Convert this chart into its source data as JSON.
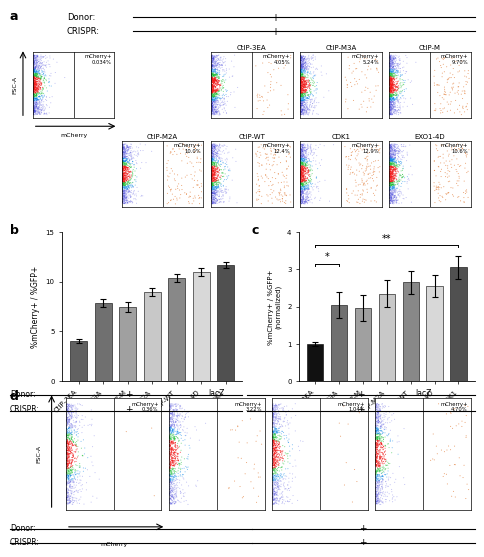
{
  "panel_a_label": "a",
  "panel_b_label": "b",
  "panel_c_label": "c",
  "panel_d_label": "d",
  "donor_label": "Donor:",
  "crispr_label": "CRISPR:",
  "plus": "+",
  "fsc_label": "FSC-A",
  "mcherry_label": "mCherry",
  "panel_b_categories": [
    "CtIP-3EA",
    "CtIP-M3A",
    "CtIP-M",
    "CtIP-M2A",
    "CtIP-WT",
    "EXO1-4D",
    "CDK1"
  ],
  "panel_b_values": [
    4.0,
    7.9,
    7.5,
    9.0,
    10.4,
    11.0,
    11.7
  ],
  "panel_b_errors": [
    0.2,
    0.4,
    0.5,
    0.4,
    0.4,
    0.4,
    0.3
  ],
  "panel_b_colors": [
    "#606060",
    "#707070",
    "#a0a0a0",
    "#c8c8c8",
    "#888888",
    "#d8d8d8",
    "#505050"
  ],
  "panel_b_ylabel": "%mCherry+ / %GFP+",
  "panel_b_ylim": [
    0,
    15
  ],
  "panel_b_yticks": [
    0,
    5,
    10,
    15
  ],
  "panel_c_categories": [
    "CtIP-3EA",
    "CtIP-M3A",
    "CtIP-M",
    "CtIP-M2A",
    "CtIP-WT",
    "EXO1-4D",
    "CDK1"
  ],
  "panel_c_values": [
    1.0,
    2.05,
    1.95,
    2.35,
    2.65,
    2.55,
    3.05
  ],
  "panel_c_errors": [
    0.05,
    0.35,
    0.35,
    0.35,
    0.3,
    0.3,
    0.3
  ],
  "panel_c_colors": [
    "#111111",
    "#707070",
    "#a0a0a0",
    "#c8c8c8",
    "#888888",
    "#d8d8d8",
    "#505050"
  ],
  "panel_c_ylabel": "%mCherry+ / %GFP+\n(normalized)",
  "panel_c_ylim": [
    0,
    4
  ],
  "panel_c_yticks": [
    0,
    1,
    2,
    3,
    4
  ],
  "panel_d_percentages": [
    "0.36%",
    "3.22%",
    "1.04%",
    "4.70%"
  ],
  "panel_d_titles": [
    "",
    "lacZ",
    "",
    "lacZ"
  ],
  "flow_a_info": [
    {
      "row": 0,
      "col": 0,
      "title": "",
      "pct": "0.034%",
      "show_axes": true
    },
    {
      "row": 0,
      "col": 2,
      "title": "CtIP-3EA",
      "pct": "4.05%",
      "show_axes": false
    },
    {
      "row": 0,
      "col": 3,
      "title": "CtIP-M3A",
      "pct": "5.24%",
      "show_axes": false
    },
    {
      "row": 0,
      "col": 4,
      "title": "CtIP-M",
      "pct": "9.70%",
      "show_axes": false
    },
    {
      "row": 1,
      "col": 1,
      "title": "CtIP-M2A",
      "pct": "10.0%",
      "show_axes": false
    },
    {
      "row": 1,
      "col": 2,
      "title": "CtIP-WT",
      "pct": "12.4%",
      "show_axes": false
    },
    {
      "row": 1,
      "col": 3,
      "title": "CDK1",
      "pct": "12.9%",
      "show_axes": false
    },
    {
      "row": 1,
      "col": 4,
      "title": "EXO1-4D",
      "pct": "10.6%",
      "show_axes": false
    }
  ],
  "sig_star1": "*",
  "sig_star2": "**"
}
